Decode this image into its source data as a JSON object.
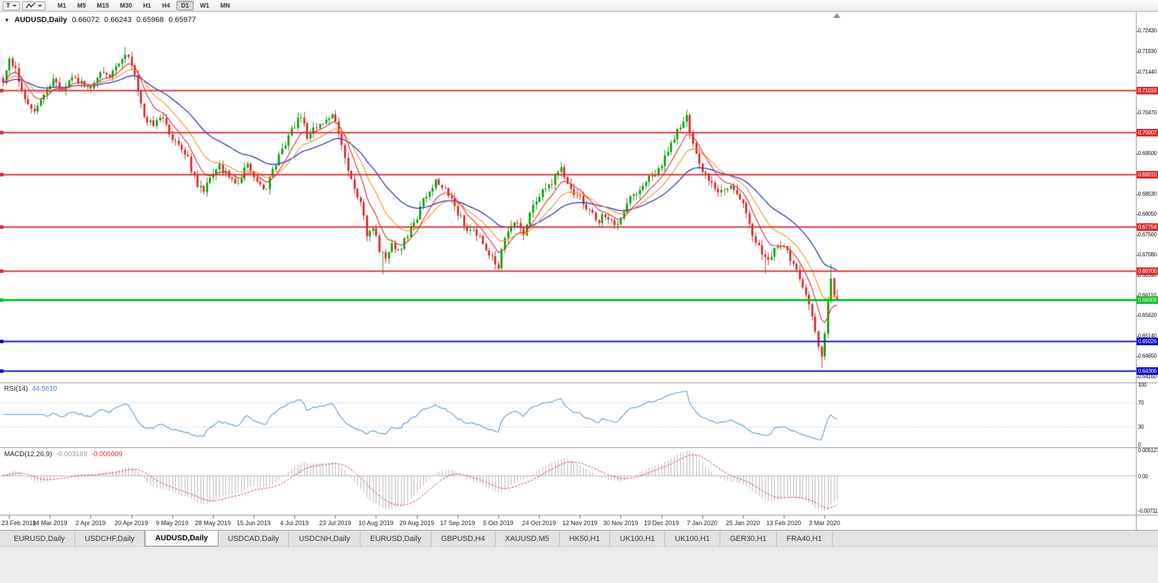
{
  "toolbar": {
    "chart_type_label": "T",
    "timeframes": [
      "M1",
      "M5",
      "M15",
      "M30",
      "H1",
      "H4",
      "D1",
      "W1",
      "MN"
    ],
    "active_timeframe": "D1"
  },
  "chart": {
    "symbol_period": "AUDUSD,Daily",
    "open": "0.66072",
    "high": "0.66243",
    "low": "0.65968",
    "close": "0.65977"
  },
  "rsi": {
    "name": "RSI(14)",
    "value": "44.5610",
    "axis_labels": [
      "100",
      "70",
      "30",
      "0"
    ],
    "levels": [
      70,
      30
    ],
    "color": "#4f94d4",
    "value_color": "#3f74c8"
  },
  "macd": {
    "name": "MACD(12,26,9)",
    "main_value": "-0.003169",
    "signal_value": "-0.005009",
    "axis_max": "0.005121",
    "axis_zero": "0.00",
    "axis_min": "-0.00711",
    "max": 0.005121,
    "min": -0.00711,
    "histogram_color": "#b6b6b6",
    "signal_color": "#d92f2f",
    "main_value_color": "#9a9a9a"
  },
  "price_axis": {
    "ticks": [
      "0.72430",
      "0.71930",
      "0.71440",
      "0.70960",
      "0.70470",
      "0.69990",
      "0.69500",
      "0.69010",
      "0.68530",
      "0.68050",
      "0.67560",
      "0.67080",
      "0.66590",
      "0.66110",
      "0.65620",
      "0.65140",
      "0.64650",
      "0.64160"
    ]
  },
  "time_axis": {
    "dates": [
      "23 Feb 2019",
      "14 Mar 2019",
      "2 Apr 2019",
      "20 Apr 2019",
      "9 May 2019",
      "28 May 2019",
      "15 Jun 2019",
      "4 Jul 2019",
      "23 Jul 2019",
      "10 Aug 2019",
      "29 Aug 2019",
      "17 Sep 2019",
      "5 Oct 2019",
      "24 Oct 2019",
      "12 Nov 2019",
      "30 Nov 2019",
      "19 Dec 2019",
      "7 Jan 2020",
      "25 Jan 2020",
      "13 Feb 2020",
      "3 Mar 2020"
    ]
  },
  "hlines": [
    {
      "price": 0.71016,
      "label": "0.71016",
      "color": "#e02828",
      "width": 2
    },
    {
      "price": 0.70007,
      "label": "0.70007",
      "color": "#e02828",
      "width": 2
    },
    {
      "price": 0.6901,
      "label": "0.69010",
      "color": "#e02828",
      "width": 2
    },
    {
      "price": 0.67754,
      "label": "0.67754",
      "color": "#e02828",
      "width": 2
    },
    {
      "price": 0.66706,
      "label": "0.66706",
      "color": "#e02828",
      "width": 2
    },
    {
      "price": 0.66009,
      "label": "0.66009",
      "color": "#00c41e",
      "width": 3
    },
    {
      "price": 0.65026,
      "label": "0.65026",
      "color": "#0000cd",
      "width": 2
    },
    {
      "price": 0.64306,
      "label": "0.64306",
      "color": "#0000cd",
      "width": 2
    }
  ],
  "tabs": [
    {
      "label": "EURUSD,Daily",
      "active": false
    },
    {
      "label": "USDCHF,Daily",
      "active": false
    },
    {
      "label": "AUDUSD,Daily",
      "active": true
    },
    {
      "label": "USDCAD,Daily",
      "active": false
    },
    {
      "label": "USDCNH,Daily",
      "active": false
    },
    {
      "label": "EURUSD,Daily",
      "active": false
    },
    {
      "label": "GBPUSD,H4",
      "active": false
    },
    {
      "label": "XAUUSD,M5",
      "active": false
    },
    {
      "label": "HK50,H1",
      "active": false
    },
    {
      "label": "UK100,H1",
      "active": false
    },
    {
      "label": "UK100,H1",
      "active": false
    },
    {
      "label": "GER30,H1",
      "active": false
    },
    {
      "label": "FRA40,H1",
      "active": false
    }
  ],
  "chart_data": {
    "type": "candlestick",
    "title": "AUDUSD,Daily",
    "symbol": "AUDUSD",
    "period": "Daily",
    "bars": 267,
    "bar_step": 4.55,
    "price_max": 0.7289,
    "price_min": 0.6403,
    "date_bar_start": 2,
    "date_bar_step": 13,
    "anchors": [
      [
        0,
        0.7125
      ],
      [
        2,
        0.7172
      ],
      [
        4,
        0.715
      ],
      [
        6,
        0.7098
      ],
      [
        8,
        0.7062
      ],
      [
        10,
        0.7048
      ],
      [
        13,
        0.7092
      ],
      [
        16,
        0.7128
      ],
      [
        19,
        0.7105
      ],
      [
        22,
        0.7135
      ],
      [
        25,
        0.7118
      ],
      [
        28,
        0.7102
      ],
      [
        31,
        0.7152
      ],
      [
        34,
        0.713
      ],
      [
        37,
        0.717
      ],
      [
        39,
        0.7192
      ],
      [
        41,
        0.7165
      ],
      [
        43,
        0.7105
      ],
      [
        45,
        0.7035
      ],
      [
        48,
        0.7022
      ],
      [
        51,
        0.704
      ],
      [
        53,
        0.6995
      ],
      [
        56,
        0.6965
      ],
      [
        59,
        0.6935
      ],
      [
        62,
        0.6872
      ],
      [
        64,
        0.686
      ],
      [
        66,
        0.6898
      ],
      [
        69,
        0.692
      ],
      [
        72,
        0.6895
      ],
      [
        75,
        0.688
      ],
      [
        78,
        0.693
      ],
      [
        81,
        0.688
      ],
      [
        84,
        0.6866
      ],
      [
        87,
        0.6928
      ],
      [
        90,
        0.6975
      ],
      [
        93,
        0.7018
      ],
      [
        95,
        0.704
      ],
      [
        97,
        0.6992
      ],
      [
        100,
        0.7012
      ],
      [
        103,
        0.703
      ],
      [
        105,
        0.7045
      ],
      [
        107,
        0.7005
      ],
      [
        110,
        0.6912
      ],
      [
        112,
        0.6868
      ],
      [
        114,
        0.6838
      ],
      [
        116,
        0.676
      ],
      [
        118,
        0.6775
      ],
      [
        120,
        0.6722
      ],
      [
        122,
        0.67
      ],
      [
        124,
        0.6742
      ],
      [
        126,
        0.6712
      ],
      [
        128,
        0.6745
      ],
      [
        130,
        0.6768
      ],
      [
        132,
        0.6798
      ],
      [
        134,
        0.6838
      ],
      [
        136,
        0.6858
      ],
      [
        138,
        0.6882
      ],
      [
        140,
        0.6868
      ],
      [
        142,
        0.6855
      ],
      [
        144,
        0.6822
      ],
      [
        146,
        0.6795
      ],
      [
        148,
        0.6768
      ],
      [
        150,
        0.6772
      ],
      [
        152,
        0.6745
      ],
      [
        154,
        0.6725
      ],
      [
        156,
        0.67
      ],
      [
        158,
        0.6682
      ],
      [
        160,
        0.6745
      ],
      [
        162,
        0.6775
      ],
      [
        164,
        0.6792
      ],
      [
        166,
        0.6758
      ],
      [
        168,
        0.6808
      ],
      [
        170,
        0.6838
      ],
      [
        172,
        0.6858
      ],
      [
        174,
        0.6872
      ],
      [
        176,
        0.6895
      ],
      [
        178,
        0.6915
      ],
      [
        180,
        0.6885
      ],
      [
        182,
        0.6858
      ],
      [
        184,
        0.6842
      ],
      [
        186,
        0.6818
      ],
      [
        188,
        0.6802
      ],
      [
        190,
        0.6792
      ],
      [
        192,
        0.6805
      ],
      [
        194,
        0.6788
      ],
      [
        196,
        0.6775
      ],
      [
        198,
        0.6818
      ],
      [
        200,
        0.6845
      ],
      [
        202,
        0.6858
      ],
      [
        204,
        0.6878
      ],
      [
        206,
        0.6892
      ],
      [
        208,
        0.6905
      ],
      [
        210,
        0.6925
      ],
      [
        212,
        0.6958
      ],
      [
        214,
        0.6992
      ],
      [
        216,
        0.7012
      ],
      [
        218,
        0.704
      ],
      [
        220,
        0.6968
      ],
      [
        222,
        0.692
      ],
      [
        224,
        0.6898
      ],
      [
        226,
        0.6882
      ],
      [
        228,
        0.6862
      ],
      [
        230,
        0.686
      ],
      [
        232,
        0.6872
      ],
      [
        234,
        0.6852
      ],
      [
        236,
        0.6832
      ],
      [
        238,
        0.6775
      ],
      [
        240,
        0.6735
      ],
      [
        242,
        0.6712
      ],
      [
        244,
        0.6692
      ],
      [
        246,
        0.6718
      ],
      [
        248,
        0.6732
      ],
      [
        250,
        0.6715
      ],
      [
        252,
        0.6682
      ],
      [
        254,
        0.6655
      ],
      [
        256,
        0.6618
      ],
      [
        258,
        0.6568
      ],
      [
        259,
        0.6528
      ],
      [
        260,
        0.6495
      ],
      [
        261,
        0.6458
      ],
      [
        262,
        0.6525
      ],
      [
        263,
        0.6595
      ],
      [
        264,
        0.6648
      ],
      [
        265,
        0.6618
      ],
      [
        266,
        0.6598
      ]
    ],
    "wick_lows": [
      {
        "i": 121,
        "low": 0.6661
      },
      {
        "i": 158,
        "low": 0.6671
      },
      {
        "i": 243,
        "low": 0.6663
      },
      {
        "i": 261,
        "low": 0.6437
      }
    ],
    "wick_highs": [
      {
        "i": 39,
        "high": 0.7205
      },
      {
        "i": 219,
        "high": 0.7047
      },
      {
        "i": 264,
        "high": 0.6686
      }
    ],
    "last_bar": {
      "open": 0.66072,
      "high": 0.66243,
      "low": 0.65968,
      "close": 0.65977
    },
    "ma_periods": {
      "fast": 8,
      "mid": 16,
      "slow": 34
    },
    "colors": {
      "up": "#0fa80f",
      "down": "#e33030",
      "ma_fast": "#e03030",
      "ma_mid": "#f29324",
      "ma_slow": "#2433d9"
    }
  }
}
